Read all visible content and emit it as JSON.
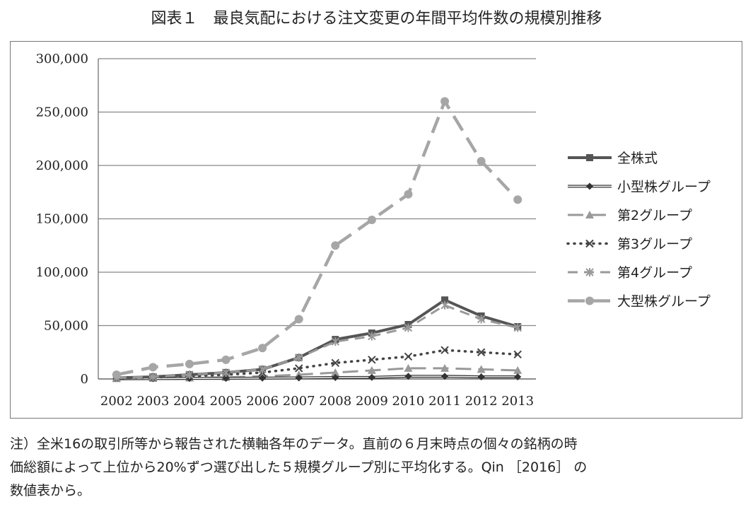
{
  "title": "図表１　最良気配における注文変更の年間平均件数の規模別推移",
  "note": [
    "注）全米16の取引所等から報告された横軸各年のデータ。直前の６月末時点の個々の銘柄の時",
    "価総額によって上位から20%ずつ選び出した５規模グループ別に平均化する。Qin ［2016］ の",
    "数値表から。"
  ],
  "chart_data": {
    "type": "line",
    "title": "",
    "xlabel": "",
    "ylabel": "",
    "ylim": [
      0,
      300000
    ],
    "yticks": [
      0,
      50000,
      100000,
      150000,
      200000,
      250000,
      300000
    ],
    "ytick_labels": [
      "0",
      "50,000",
      "100,000",
      "150,000",
      "200,000",
      "250,000",
      "300,000"
    ],
    "categories": [
      "2002",
      "2003",
      "2004",
      "2005",
      "2006",
      "2007",
      "2008",
      "2009",
      "2010",
      "2011",
      "2012",
      "2013"
    ],
    "grid": "horizontal",
    "legend_position": "right",
    "series": [
      {
        "name": "全株式",
        "color": "#555555",
        "style": "solid-thick",
        "marker": "square",
        "values": [
          1000,
          2000,
          4000,
          6000,
          9000,
          20000,
          37000,
          43000,
          51000,
          74000,
          59000,
          49000
        ]
      },
      {
        "name": "小型株グループ",
        "color": "#333333",
        "style": "double",
        "marker": "diamond",
        "values": [
          200,
          300,
          500,
          600,
          800,
          1000,
          1300,
          1500,
          2500,
          2500,
          2000,
          2000
        ]
      },
      {
        "name": "第2グループ",
        "color": "#999999",
        "style": "long-dash",
        "marker": "triangle",
        "values": [
          500,
          700,
          1000,
          1500,
          2500,
          4000,
          6000,
          8000,
          10000,
          10000,
          9000,
          8000
        ]
      },
      {
        "name": "第3グループ",
        "color": "#444444",
        "style": "dotted",
        "marker": "x",
        "values": [
          800,
          1500,
          2500,
          4000,
          6000,
          10000,
          15000,
          18000,
          21000,
          27000,
          25000,
          23000
        ]
      },
      {
        "name": "第4グループ",
        "color": "#999999",
        "style": "dashed",
        "marker": "star",
        "values": [
          1000,
          2000,
          4000,
          6000,
          9000,
          20000,
          35000,
          40000,
          48000,
          69000,
          56000,
          48000
        ]
      },
      {
        "name": "大型株グループ",
        "color": "#a6a6a6",
        "style": "dashed-thick",
        "marker": "circle",
        "values": [
          4000,
          11000,
          14000,
          18000,
          29000,
          56000,
          125000,
          149000,
          173000,
          260000,
          204000,
          168000
        ]
      }
    ]
  }
}
